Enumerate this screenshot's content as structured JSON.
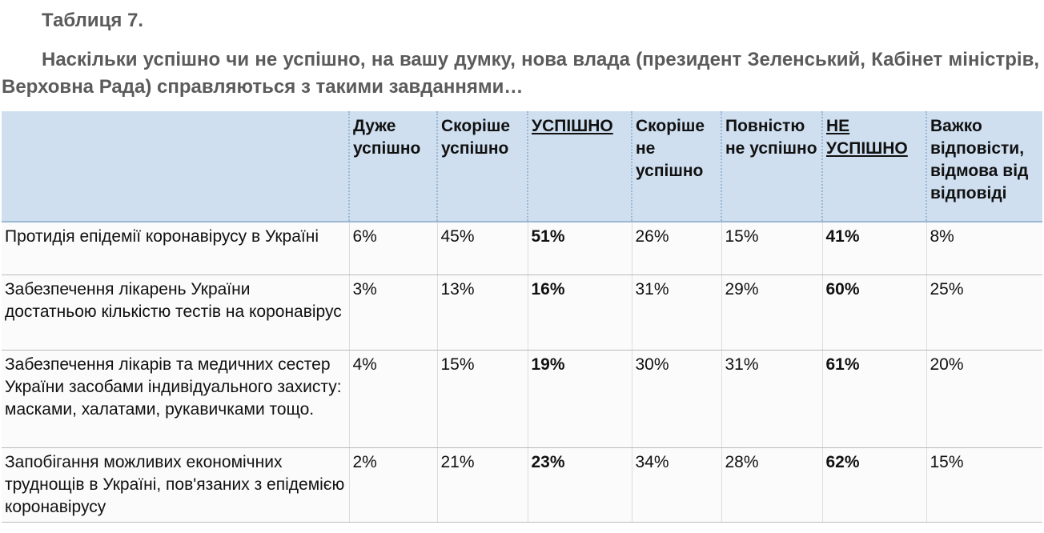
{
  "document": {
    "title": "Таблиця 7.",
    "question": "Наскільки успішно чи не успішно, на вашу думку, нова влада (президент Зеленський, Кабінет міністрів, Верховна Рада) справляються з такими завданнями…"
  },
  "table": {
    "headers": [
      "",
      "Дуже успішно",
      "Скоріше успішно",
      "УСПІШНО",
      "Скоріше не успішно",
      "Повністю не успішно",
      "НЕ УСПІШНО",
      "Важко відповісти, відмова від відповіді"
    ],
    "rows": [
      {
        "task": "Протидія епідемії коронавірусу в Україні",
        "values": [
          "6%",
          "45%",
          "51%",
          "26%",
          "15%",
          "41%",
          "8%"
        ]
      },
      {
        "task": "Забезпечення лікарень України достатньою кількістю тестів на коронавірус",
        "values": [
          "3%",
          "13%",
          "16%",
          "31%",
          "29%",
          "60%",
          "25%"
        ]
      },
      {
        "task": "Забезпечення лікарів та медичних сестер України засобами індивідуального захисту: масками, халатами, рукавичками тощо.",
        "values": [
          "4%",
          "15%",
          "19%",
          "30%",
          "31%",
          "61%",
          "20%"
        ]
      },
      {
        "task": "Запобігання можливих економічних труднощів в Україні, пов'язаних з епідемією коронавірусу",
        "values": [
          "2%",
          "21%",
          "23%",
          "34%",
          "28%",
          "62%",
          "15%"
        ]
      }
    ]
  }
}
